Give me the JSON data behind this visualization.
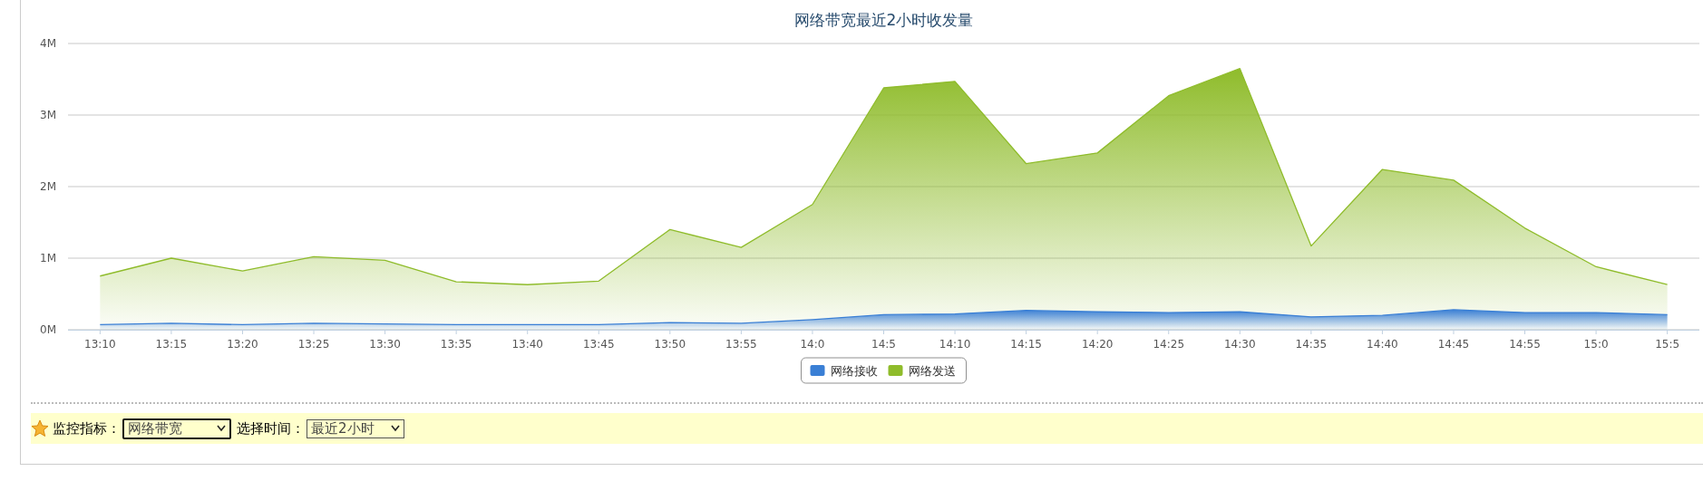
{
  "chart_data": {
    "type": "area",
    "title": "网络带宽最近2小时收发量",
    "categories": [
      "13:10",
      "13:15",
      "13:20",
      "13:25",
      "13:30",
      "13:35",
      "13:40",
      "13:45",
      "13:50",
      "13:55",
      "14:0",
      "14:5",
      "14:10",
      "14:15",
      "14:20",
      "14:25",
      "14:30",
      "14:35",
      "14:40",
      "14:45",
      "14:55",
      "15:0",
      "15:5"
    ],
    "series": [
      {
        "name": "网络接收",
        "color": "#3a7fd5",
        "values": [
          0.07,
          0.09,
          0.07,
          0.09,
          0.08,
          0.07,
          0.07,
          0.07,
          0.1,
          0.09,
          0.14,
          0.21,
          0.22,
          0.27,
          0.25,
          0.24,
          0.25,
          0.18,
          0.2,
          0.28,
          0.24,
          0.24,
          0.21
        ]
      },
      {
        "name": "网络发送",
        "color": "#8fbc2b",
        "values": [
          0.75,
          1.0,
          0.82,
          1.02,
          0.97,
          0.67,
          0.63,
          0.68,
          1.4,
          1.15,
          1.75,
          3.38,
          3.47,
          2.32,
          2.47,
          3.27,
          3.65,
          1.17,
          2.24,
          2.09,
          1.42,
          0.88,
          0.63
        ]
      }
    ],
    "ylim": [
      0,
      4
    ],
    "yticks": [
      {
        "value": 0,
        "label": "0M"
      },
      {
        "value": 1,
        "label": "1M"
      },
      {
        "value": 2,
        "label": "2M"
      },
      {
        "value": 3,
        "label": "3M"
      },
      {
        "value": 4,
        "label": "4M"
      }
    ],
    "grid": "y",
    "legend": "bottom",
    "annotations": [
      "监控指标：",
      "网络带宽",
      "选择时间：",
      "最近2小时"
    ]
  }
}
